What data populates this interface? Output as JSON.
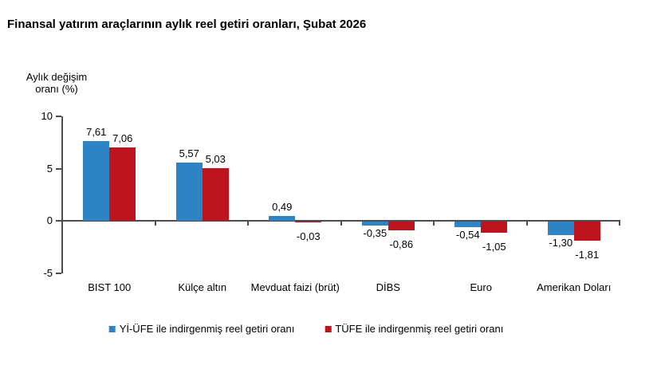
{
  "chart_data": {
    "type": "bar",
    "title": "Finansal yatırım araçlarının aylık reel getiri oranları, Şubat 2026",
    "ylabel": "Aylık değişim\noranı (%)",
    "categories": [
      "BIST 100",
      "Külçe altın",
      "Mevduat faizi (brüt)",
      "DİBS",
      "Euro",
      "Amerikan Doları"
    ],
    "series": [
      {
        "name": "Yİ-ÜFE ile indirgenmiş reel getiri oranı",
        "color": "#2E83C5",
        "values": [
          7.61,
          5.57,
          0.49,
          -0.35,
          -0.54,
          -1.3
        ],
        "labels": [
          "7,61",
          "5,57",
          "0,49",
          "-0,35",
          "-0,54",
          "-1,30"
        ]
      },
      {
        "name": "TÜFE ile indirgenmiş reel getiri oranı",
        "color": "#BE141E",
        "values": [
          7.06,
          5.03,
          -0.03,
          -0.86,
          -1.05,
          -1.81
        ],
        "labels": [
          "7,06",
          "5,03",
          "-0,03",
          "-0,86",
          "-1,05",
          "-1,81"
        ]
      }
    ],
    "ylim": [
      -5,
      10
    ],
    "yticks": [
      10,
      5,
      0,
      -5
    ],
    "grid": false,
    "legend_position": "bottom",
    "decimal_separator": ",",
    "axis_color": "#4D4D4D",
    "text_color": "#000000"
  }
}
